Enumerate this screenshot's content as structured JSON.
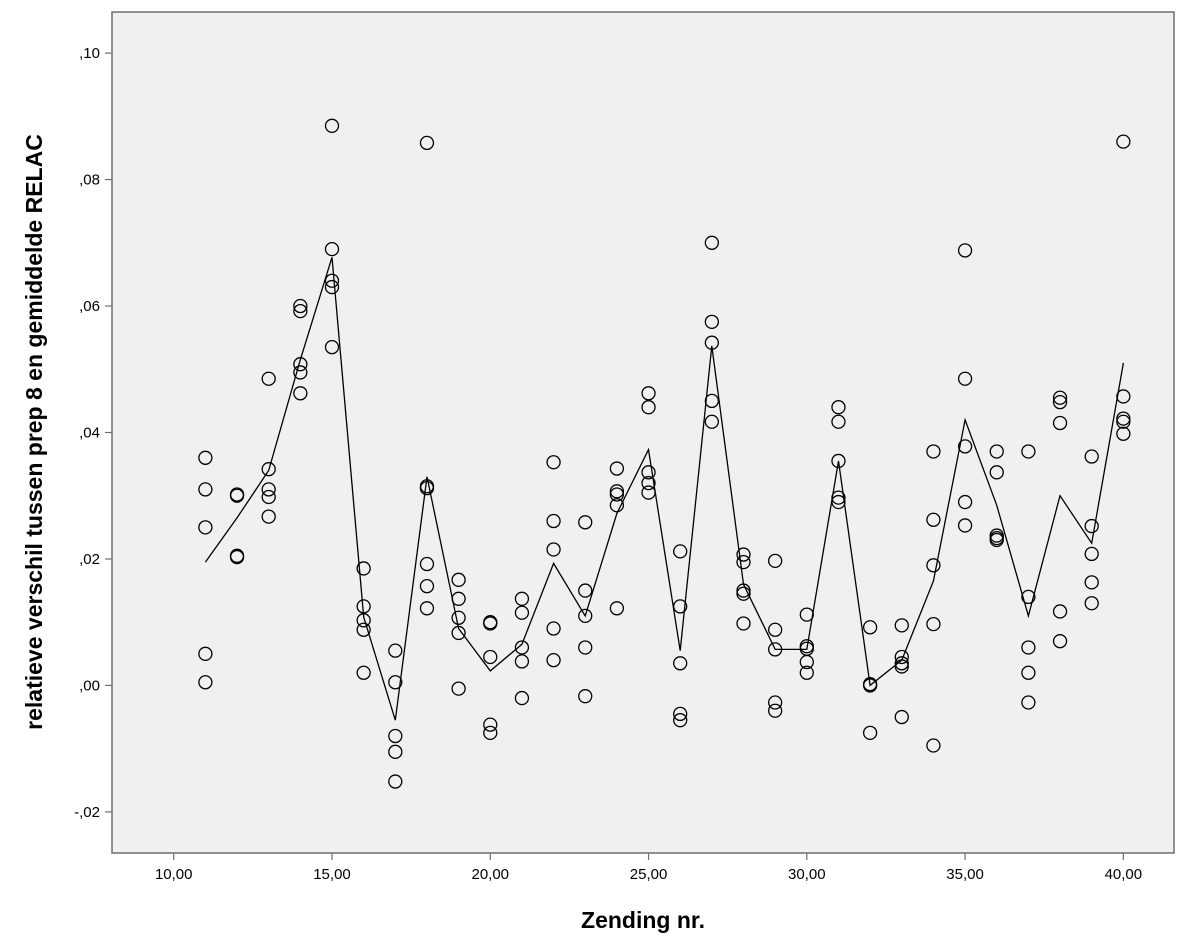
{
  "chart_data": {
    "type": "scatter",
    "title": "",
    "xlabel": "Zending nr.",
    "ylabel": "relatieve verschil tussen prep 8 en gemiddelde RELAC",
    "xlim": [
      8.05,
      41.6
    ],
    "ylim": [
      -0.0265,
      0.1065
    ],
    "x_ticks": [
      10,
      15,
      20,
      25,
      30,
      35,
      40
    ],
    "x_tick_labels": [
      "10,00",
      "15,00",
      "20,00",
      "25,00",
      "30,00",
      "35,00",
      "40,00"
    ],
    "y_ticks": [
      -0.02,
      0.0,
      0.02,
      0.04,
      0.06,
      0.08,
      0.1
    ],
    "y_tick_labels": [
      "-,02",
      ",00",
      ",02",
      ",04",
      ",06",
      ",08",
      ",10"
    ],
    "grid": false,
    "background": "#f0f0f0",
    "series": [
      {
        "marker": "open-circle",
        "points": [
          [
            11,
            0.036
          ],
          [
            11,
            0.031
          ],
          [
            11,
            0.025
          ],
          [
            11,
            0.005
          ],
          [
            11,
            0.0005
          ],
          [
            12,
            0.0302
          ],
          [
            12,
            0.03
          ],
          [
            12,
            0.0205
          ],
          [
            12,
            0.0203
          ],
          [
            13,
            0.0485
          ],
          [
            13,
            0.0342
          ],
          [
            13,
            0.031
          ],
          [
            13,
            0.0298
          ],
          [
            13,
            0.0267
          ],
          [
            14,
            0.06
          ],
          [
            14,
            0.0592
          ],
          [
            14,
            0.0508
          ],
          [
            14,
            0.0495
          ],
          [
            14,
            0.0462
          ],
          [
            15,
            0.0885
          ],
          [
            15,
            0.069
          ],
          [
            15,
            0.064
          ],
          [
            15,
            0.063
          ],
          [
            15,
            0.0535
          ],
          [
            16,
            0.0185
          ],
          [
            16,
            0.0125
          ],
          [
            16,
            0.0103
          ],
          [
            16,
            0.0088
          ],
          [
            16,
            0.002
          ],
          [
            17,
            0.0055
          ],
          [
            17,
            0.0005
          ],
          [
            17,
            -0.008
          ],
          [
            17,
            -0.0105
          ],
          [
            17,
            -0.0152
          ],
          [
            18,
            0.0858
          ],
          [
            18,
            0.0315
          ],
          [
            18,
            0.0312
          ],
          [
            18,
            0.0192
          ],
          [
            18,
            0.0157
          ],
          [
            18,
            0.0122
          ],
          [
            19,
            0.0167
          ],
          [
            19,
            0.0137
          ],
          [
            19,
            0.0107
          ],
          [
            19,
            0.0083
          ],
          [
            19,
            -0.0005
          ],
          [
            20,
            0.01
          ],
          [
            20,
            0.0098
          ],
          [
            20,
            0.0045
          ],
          [
            20,
            -0.0062
          ],
          [
            20,
            -0.0075
          ],
          [
            21,
            0.0137
          ],
          [
            21,
            0.0115
          ],
          [
            21,
            0.006
          ],
          [
            21,
            0.0038
          ],
          [
            21,
            -0.002
          ],
          [
            22,
            0.0353
          ],
          [
            22,
            0.026
          ],
          [
            22,
            0.0215
          ],
          [
            22,
            0.009
          ],
          [
            22,
            0.004
          ],
          [
            23,
            0.0258
          ],
          [
            23,
            0.015
          ],
          [
            23,
            0.011
          ],
          [
            23,
            0.006
          ],
          [
            23,
            -0.0017
          ],
          [
            24,
            0.0343
          ],
          [
            24,
            0.0307
          ],
          [
            24,
            0.0302
          ],
          [
            24,
            0.0285
          ],
          [
            24,
            0.0122
          ],
          [
            25,
            0.0462
          ],
          [
            25,
            0.044
          ],
          [
            25,
            0.0337
          ],
          [
            25,
            0.032
          ],
          [
            25,
            0.0305
          ],
          [
            26,
            0.0212
          ],
          [
            26,
            0.0125
          ],
          [
            26,
            0.0035
          ],
          [
            26,
            -0.0045
          ],
          [
            26,
            -0.0055
          ],
          [
            27,
            0.07
          ],
          [
            27,
            0.0575
          ],
          [
            27,
            0.0542
          ],
          [
            27,
            0.045
          ],
          [
            27,
            0.0417
          ],
          [
            28,
            0.0207
          ],
          [
            28,
            0.0195
          ],
          [
            28,
            0.015
          ],
          [
            28,
            0.0145
          ],
          [
            28,
            0.0098
          ],
          [
            29,
            0.0197
          ],
          [
            29,
            0.0088
          ],
          [
            29,
            0.0057
          ],
          [
            29,
            -0.0027
          ],
          [
            29,
            -0.004
          ],
          [
            30,
            0.0112
          ],
          [
            30,
            0.0062
          ],
          [
            30,
            0.0058
          ],
          [
            30,
            0.0037
          ],
          [
            30,
            0.002
          ],
          [
            31,
            0.044
          ],
          [
            31,
            0.0417
          ],
          [
            31,
            0.0355
          ],
          [
            31,
            0.0297
          ],
          [
            31,
            0.029
          ],
          [
            32,
            0.0092
          ],
          [
            32,
            0.0002
          ],
          [
            32,
            0.0
          ],
          [
            32,
            -0.0075
          ],
          [
            33,
            0.0095
          ],
          [
            33,
            0.0045
          ],
          [
            33,
            0.0035
          ],
          [
            33,
            0.003
          ],
          [
            33,
            -0.005
          ],
          [
            34,
            0.037
          ],
          [
            34,
            0.0262
          ],
          [
            34,
            0.019
          ],
          [
            34,
            0.0097
          ],
          [
            34,
            -0.0095
          ],
          [
            35,
            0.0688
          ],
          [
            35,
            0.0485
          ],
          [
            35,
            0.0378
          ],
          [
            35,
            0.029
          ],
          [
            35,
            0.0253
          ],
          [
            36,
            0.037
          ],
          [
            36,
            0.0337
          ],
          [
            36,
            0.0237
          ],
          [
            36,
            0.0233
          ],
          [
            36,
            0.023
          ],
          [
            37,
            0.037
          ],
          [
            37,
            0.014
          ],
          [
            37,
            0.006
          ],
          [
            37,
            0.002
          ],
          [
            37,
            -0.0027
          ],
          [
            38,
            0.0455
          ],
          [
            38,
            0.0448
          ],
          [
            38,
            0.0415
          ],
          [
            38,
            0.0117
          ],
          [
            38,
            0.007
          ],
          [
            39,
            0.0362
          ],
          [
            39,
            0.0252
          ],
          [
            39,
            0.0208
          ],
          [
            39,
            0.0163
          ],
          [
            39,
            0.013
          ],
          [
            40,
            0.086
          ],
          [
            40,
            0.0457
          ],
          [
            40,
            0.0422
          ],
          [
            40,
            0.0417
          ],
          [
            40,
            0.0398
          ]
        ]
      },
      {
        "marker": "line",
        "points": [
          [
            11,
            0.0195
          ],
          [
            12,
            0.0265
          ],
          [
            13,
            0.034
          ],
          [
            14,
            0.0515
          ],
          [
            15,
            0.0677
          ],
          [
            16,
            0.0108
          ],
          [
            17,
            -0.0055
          ],
          [
            18,
            0.033
          ],
          [
            19,
            0.009
          ],
          [
            20,
            0.0023
          ],
          [
            21,
            0.0065
          ],
          [
            22,
            0.0193
          ],
          [
            23,
            0.011
          ],
          [
            24,
            0.0272
          ],
          [
            25,
            0.0373
          ],
          [
            26,
            0.0055
          ],
          [
            27,
            0.0537
          ],
          [
            28,
            0.016
          ],
          [
            29,
            0.0057
          ],
          [
            30,
            0.0057
          ],
          [
            31,
            0.0355
          ],
          [
            32,
            0.0
          ],
          [
            33,
            0.004
          ],
          [
            34,
            0.0165
          ],
          [
            35,
            0.042
          ],
          [
            36,
            0.0285
          ],
          [
            37,
            0.011
          ],
          [
            38,
            0.03
          ],
          [
            39,
            0.0225
          ],
          [
            40,
            0.051
          ]
        ]
      }
    ]
  }
}
